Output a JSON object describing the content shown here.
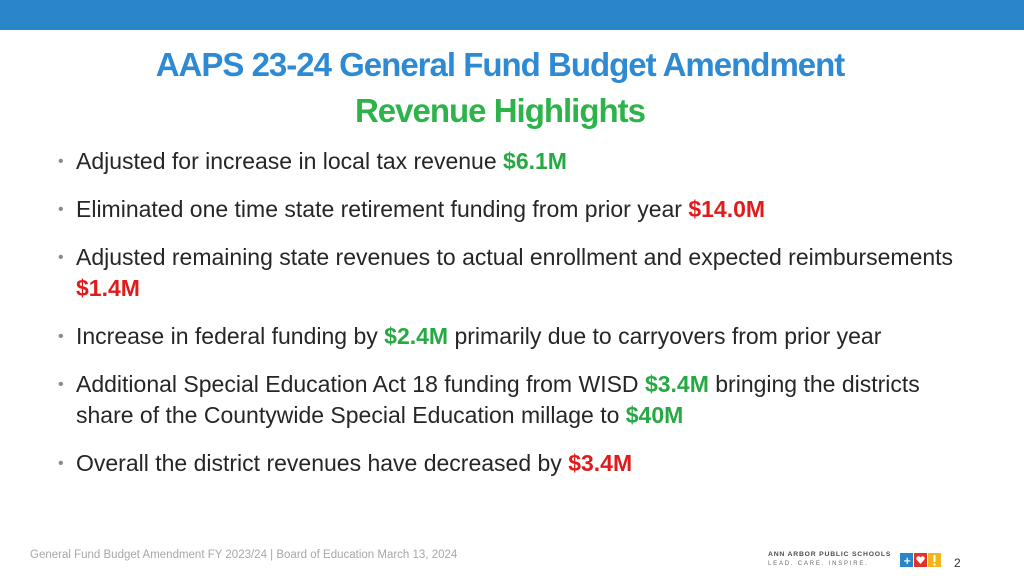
{
  "slide": {
    "title": "AAPS 23-24 General Fund Budget Amendment",
    "subtitle": "Revenue Highlights",
    "bullets": [
      {
        "segments": [
          {
            "text": "Adjusted for increase in local tax revenue ",
            "style": "normal"
          },
          {
            "text": "$6.1M",
            "style": "green"
          }
        ]
      },
      {
        "segments": [
          {
            "text": "Eliminated one time state retirement funding from prior year ",
            "style": "normal"
          },
          {
            "text": "$14.0M",
            "style": "red"
          }
        ]
      },
      {
        "segments": [
          {
            "text": "Adjusted remaining state revenues to actual enrollment and expected reimbursements ",
            "style": "normal"
          },
          {
            "text": "$1.4M",
            "style": "red"
          }
        ]
      },
      {
        "segments": [
          {
            "text": "Increase in federal funding by ",
            "style": "normal"
          },
          {
            "text": "$2.4M",
            "style": "green"
          },
          {
            "text": " primarily due to carryovers from prior year",
            "style": "normal"
          }
        ]
      },
      {
        "segments": [
          {
            "text": "Additional Special Education Act 18 funding from WISD ",
            "style": "normal"
          },
          {
            "text": "$3.4M",
            "style": "green"
          },
          {
            "text": " bringing the districts share of the Countywide Special Education millage to ",
            "style": "normal"
          },
          {
            "text": "$40M",
            "style": "green"
          }
        ]
      },
      {
        "segments": [
          {
            "text": "Overall the district revenues have decreased by ",
            "style": "normal"
          },
          {
            "text": "$3.4M",
            "style": "red"
          }
        ]
      }
    ]
  },
  "footer": {
    "text": "General Fund Budget Amendment FY 2023/24 | Board of Education March 13, 2024",
    "page_number": "2"
  },
  "logo": {
    "name": "ANN ARBOR PUBLIC SCHOOLS",
    "tagline": "LEAD. CARE. INSPIRE."
  },
  "colors": {
    "top_bar": "#2b86c9",
    "title": "#2e8ad2",
    "subtitle": "#2db34a",
    "positive_amount": "#26a943",
    "negative_amount": "#e01b1b"
  }
}
